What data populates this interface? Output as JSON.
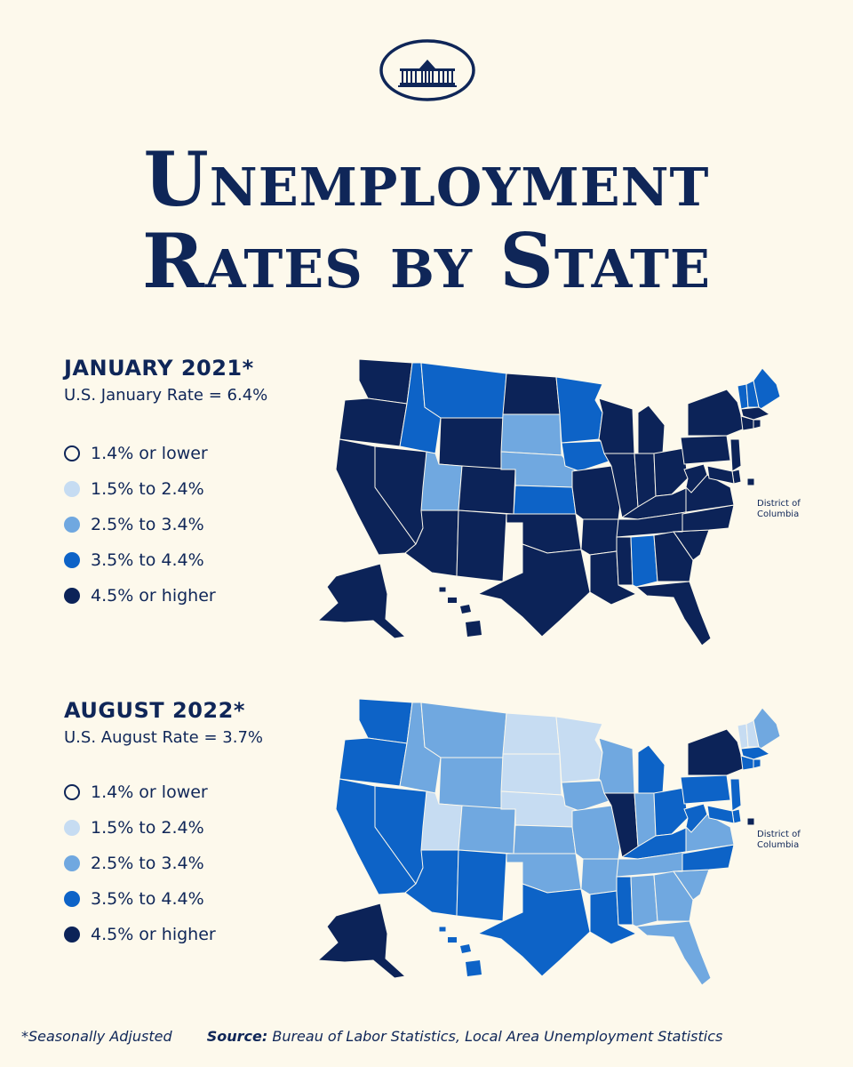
{
  "title": {
    "line1": "Unemployment",
    "line2": "Rates by State"
  },
  "legend_colors": {
    "bin_1": "#fdf9ec",
    "bin_2": "#c6dcf2",
    "bin_3": "#70a8e0",
    "bin_4": "#0d63c7",
    "bin_5": "#0c2358"
  },
  "panels": [
    {
      "title": "JANUARY 2021*",
      "subtitle": "U.S. January Rate = 6.4%",
      "legend": [
        "1.4% or lower",
        "1.5% to 2.4%",
        "2.5% to 3.4%",
        "3.5% to 4.4%",
        "4.5% or higher"
      ],
      "dc_label": [
        "District of",
        "Columbia"
      ]
    },
    {
      "title": "AUGUST 2022*",
      "subtitle": "U.S. August Rate = 3.7%",
      "legend": [
        "1.4% or lower",
        "1.5% to 2.4%",
        "2.5% to 3.4%",
        "3.5% to 4.4%",
        "4.5% or higher"
      ],
      "dc_label": [
        "District of",
        "Columbia"
      ]
    }
  ],
  "footer": {
    "note": "*Seasonally Adjusted",
    "source_label": "Source:",
    "source_text": "Bureau of Labor Statistics, Local Area Unemployment Statistics"
  },
  "map_data": {
    "bins": [
      "1.4% or lower",
      "1.5% to 2.4%",
      "2.5% to 3.4%",
      "3.5% to 4.4%",
      "4.5% or higher"
    ],
    "jan_2021": {
      "WA": 5,
      "OR": 5,
      "CA": 5,
      "NV": 5,
      "ID": 4,
      "MT": 4,
      "WY": 5,
      "UT": 3,
      "CO": 5,
      "AZ": 5,
      "NM": 5,
      "ND": 5,
      "SD": 3,
      "NE": 3,
      "KS": 4,
      "OK": 5,
      "TX": 5,
      "MN": 4,
      "IA": 4,
      "MO": 5,
      "AR": 5,
      "LA": 5,
      "WI": 5,
      "IL": 5,
      "MI": 5,
      "IN": 5,
      "OH": 5,
      "KY": 5,
      "TN": 5,
      "MS": 5,
      "AL": 4,
      "GA": 5,
      "FL": 5,
      "SC": 5,
      "NC": 5,
      "VA": 5,
      "WV": 5,
      "PA": 5,
      "NY": 5,
      "VT": 4,
      "NH": 4,
      "ME": 4,
      "MA": 5,
      "CT": 5,
      "RI": 5,
      "NJ": 5,
      "DE": 5,
      "MD": 5,
      "DC": 5,
      "AK": 5,
      "HI": 5
    },
    "aug_2022": {
      "WA": 4,
      "OR": 4,
      "CA": 4,
      "NV": 4,
      "ID": 3,
      "MT": 3,
      "WY": 3,
      "UT": 2,
      "CO": 3,
      "AZ": 4,
      "NM": 4,
      "ND": 2,
      "SD": 2,
      "NE": 2,
      "KS": 3,
      "OK": 3,
      "TX": 4,
      "MN": 2,
      "IA": 3,
      "MO": 3,
      "AR": 3,
      "LA": 4,
      "WI": 3,
      "IL": 5,
      "MI": 4,
      "IN": 3,
      "OH": 4,
      "KY": 4,
      "TN": 3,
      "MS": 4,
      "AL": 3,
      "GA": 3,
      "FL": 3,
      "SC": 3,
      "NC": 4,
      "VA": 3,
      "WV": 4,
      "PA": 4,
      "NY": 5,
      "VT": 2,
      "NH": 2,
      "ME": 3,
      "MA": 4,
      "CT": 4,
      "RI": 4,
      "NJ": 4,
      "DE": 4,
      "MD": 4,
      "DC": 5,
      "AK": 5,
      "HI": 4
    }
  }
}
